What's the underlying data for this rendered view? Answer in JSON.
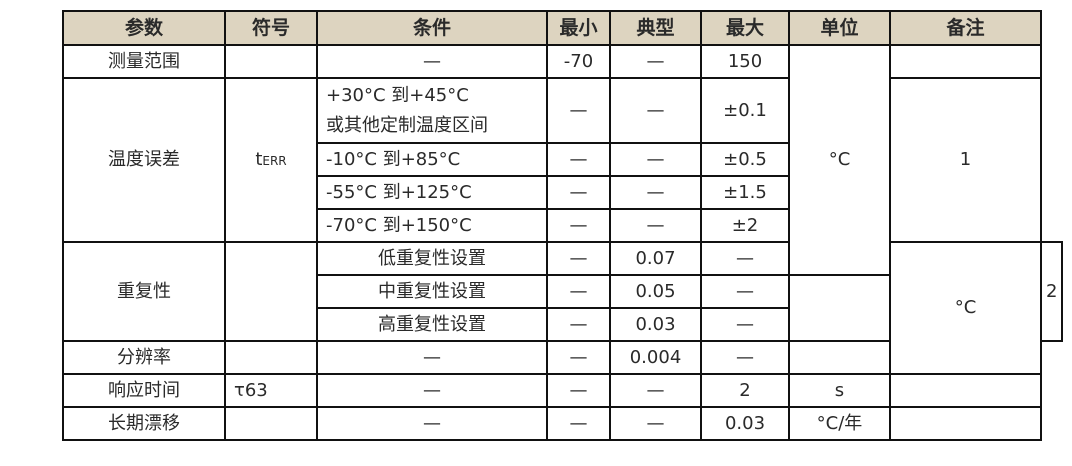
{
  "headers": [
    "参数",
    "符号",
    "条件",
    "最小",
    "典型",
    "最大",
    "单位",
    "备注"
  ],
  "rows": {
    "range": {
      "param": "测量范围",
      "symbol": "",
      "cond": "—",
      "min": "-70",
      "typ": "—",
      "max": "150"
    },
    "accuracy": {
      "param": "温度误差",
      "symbol_main": "t",
      "symbol_sub": "ERR",
      "sub": [
        {
          "cond1": "+30°C 到+45°C",
          "cond2": "或其他定制温度区间",
          "min": "—",
          "typ": "—",
          "max": "±0.1"
        },
        {
          "cond": "-10°C 到+85°C",
          "min": "—",
          "typ": "—",
          "max": "±0.5"
        },
        {
          "cond": "-55°C 到+125°C",
          "min": "—",
          "typ": "—",
          "max": "±1.5"
        },
        {
          "cond": "-70°C 到+150°C",
          "min": "—",
          "typ": "—",
          "max": "±2"
        }
      ],
      "unit": "°C",
      "note": "1"
    },
    "repeatability": {
      "param": "重复性",
      "sub": [
        {
          "cond": "低重复性设置",
          "min": "—",
          "typ": "0.07",
          "max": "—"
        },
        {
          "cond": "中重复性设置",
          "min": "—",
          "typ": "0.05",
          "max": "—"
        },
        {
          "cond": "高重复性设置",
          "min": "—",
          "typ": "0.03",
          "max": "—"
        }
      ],
      "unit": "°C",
      "note": "2"
    },
    "resolution": {
      "param": "分辨率",
      "cond": "—",
      "min": "—",
      "typ": "0.004",
      "max": "—"
    },
    "response": {
      "param": "响应时间",
      "symbol": "τ63",
      "cond": "—",
      "min": "—",
      "typ": "—",
      "max": "2",
      "unit": "s"
    },
    "drift": {
      "param": "长期漂移",
      "cond": "—",
      "min": "—",
      "typ": "—",
      "max": "0.03",
      "unit": "°C/年"
    }
  }
}
